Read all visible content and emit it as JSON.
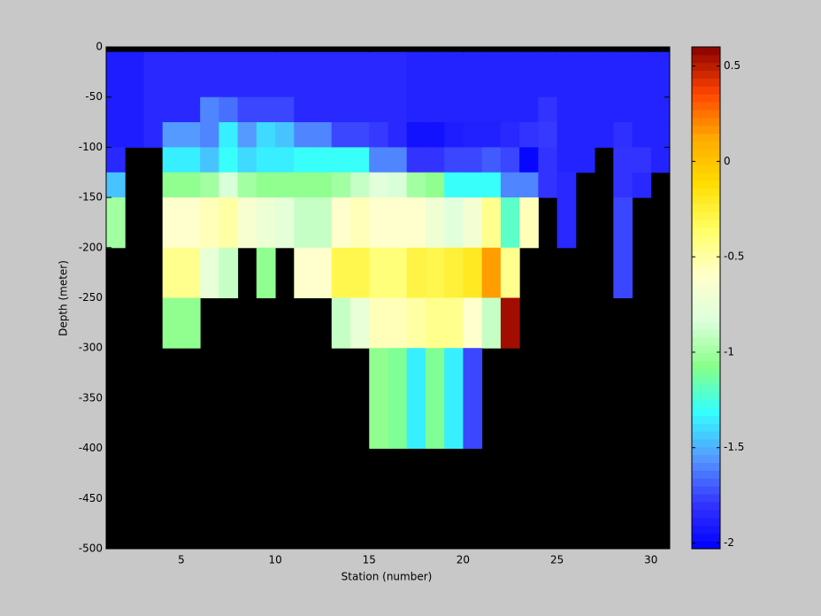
{
  "chart_data": {
    "type": "heatmap",
    "xlabel": "Station (number)",
    "ylabel": "Depth (meter)",
    "x_edges": [
      1,
      2,
      3,
      4,
      5,
      6,
      7,
      8,
      9,
      10,
      11,
      12,
      13,
      14,
      15,
      16,
      17,
      18,
      19,
      20,
      21,
      22,
      23,
      24,
      25,
      26,
      27,
      28,
      29,
      30,
      31
    ],
    "y_edges": [
      0,
      -5,
      -50,
      -75,
      -100,
      -125,
      -150,
      -200,
      -250,
      -300,
      -400,
      -500
    ],
    "xlim": [
      1,
      31
    ],
    "ylim": [
      -500,
      0
    ],
    "xticks": [
      5,
      10,
      15,
      20,
      25,
      30
    ],
    "yticks": [
      0,
      -50,
      -100,
      -150,
      -200,
      -250,
      -300,
      -350,
      -400,
      -450,
      -500
    ],
    "clim": [
      -2.03,
      0.6
    ],
    "cticks": [
      0.5,
      0,
      -0.5,
      -1,
      -1.5,
      -2
    ],
    "colormap": [
      "#0000ff",
      "#3535ff",
      "#5599ff",
      "#33ffff",
      "#88ff88",
      "#ddffdd",
      "#ffffcc",
      "#ffff66",
      "#ffdd00",
      "#ffaa00",
      "#ff4400",
      "#880000"
    ],
    "nan_color": "#000000",
    "z": [
      [
        null,
        null,
        null,
        null,
        null,
        null,
        null,
        null,
        null,
        null,
        null,
        null,
        null,
        null,
        null,
        null,
        null,
        null,
        null,
        null,
        null,
        null,
        null,
        null,
        null,
        null,
        null,
        null,
        null,
        null
      ],
      [
        -1.9,
        -1.9,
        -1.85,
        -1.85,
        -1.85,
        -1.85,
        -1.85,
        -1.85,
        -1.85,
        -1.85,
        -1.85,
        -1.85,
        -1.85,
        -1.85,
        -1.85,
        -1.85,
        -1.87,
        -1.87,
        -1.87,
        -1.87,
        -1.87,
        -1.87,
        -1.87,
        -1.87,
        -1.87,
        -1.87,
        -1.87,
        -1.87,
        -1.87,
        -1.87
      ],
      [
        -1.9,
        -1.9,
        -1.85,
        -1.85,
        -1.85,
        -1.6,
        -1.65,
        -1.75,
        -1.75,
        -1.75,
        -1.85,
        -1.85,
        -1.85,
        -1.85,
        -1.85,
        -1.85,
        -1.87,
        -1.87,
        -1.87,
        -1.87,
        -1.87,
        -1.87,
        -1.87,
        -1.8,
        -1.87,
        -1.87,
        -1.87,
        -1.87,
        -1.87,
        -1.87
      ],
      [
        -1.9,
        -1.9,
        -1.85,
        -1.55,
        -1.55,
        -1.6,
        -1.35,
        -1.55,
        -1.4,
        -1.45,
        -1.6,
        -1.6,
        -1.75,
        -1.75,
        -1.78,
        -1.85,
        -1.95,
        -1.95,
        -1.9,
        -1.88,
        -1.88,
        -1.85,
        -1.8,
        -1.78,
        -1.87,
        -1.87,
        -1.87,
        -1.82,
        -1.87,
        -1.87
      ],
      [
        -1.85,
        null,
        null,
        -1.35,
        -1.35,
        -1.45,
        -1.3,
        -1.4,
        -1.35,
        -1.35,
        -1.3,
        -1.3,
        -1.3,
        -1.3,
        -1.6,
        -1.6,
        -1.8,
        -1.8,
        -1.75,
        -1.75,
        -1.7,
        -1.75,
        -2.0,
        -1.8,
        -1.87,
        -1.87,
        null,
        -1.8,
        -1.8,
        -1.87
      ],
      [
        -1.45,
        null,
        null,
        -1.05,
        -1.05,
        -1.0,
        -0.85,
        -1.0,
        -1.05,
        -1.05,
        -1.05,
        -1.05,
        -1.0,
        -0.9,
        -0.8,
        -0.85,
        -1.0,
        -1.05,
        -1.3,
        -1.3,
        -1.3,
        -1.6,
        -1.6,
        -1.8,
        -1.85,
        null,
        null,
        -1.8,
        -1.85,
        null
      ],
      [
        -1.0,
        null,
        null,
        -0.6,
        -0.6,
        -0.55,
        -0.5,
        -0.65,
        -0.72,
        -0.78,
        -0.9,
        -0.9,
        -0.6,
        -0.55,
        -0.6,
        -0.6,
        -0.6,
        -0.7,
        -0.8,
        -0.68,
        -0.45,
        -1.2,
        -0.55,
        null,
        -1.85,
        null,
        null,
        -1.75,
        null,
        null
      ],
      [
        null,
        null,
        null,
        -0.45,
        -0.45,
        -0.75,
        -0.9,
        null,
        -1.05,
        null,
        -0.6,
        -0.6,
        -0.3,
        -0.3,
        -0.4,
        -0.4,
        -0.28,
        -0.3,
        -0.25,
        -0.2,
        0.15,
        -0.45,
        null,
        null,
        null,
        null,
        null,
        -1.75,
        null,
        null
      ],
      [
        null,
        null,
        null,
        -1.05,
        -1.05,
        null,
        null,
        null,
        null,
        null,
        null,
        null,
        -0.9,
        -0.75,
        -0.55,
        -0.55,
        -0.5,
        -0.45,
        -0.45,
        -0.6,
        -0.9,
        0.55,
        null,
        null,
        null,
        null,
        null,
        null,
        null,
        null
      ],
      [
        null,
        null,
        null,
        null,
        null,
        null,
        null,
        null,
        null,
        null,
        null,
        null,
        null,
        null,
        -1.05,
        -1.1,
        -1.35,
        -1.1,
        -1.35,
        -1.75,
        null,
        null,
        null,
        null,
        null,
        null,
        null,
        null,
        null,
        null
      ],
      [
        null,
        null,
        null,
        null,
        null,
        null,
        null,
        null,
        null,
        null,
        null,
        null,
        null,
        null,
        null,
        null,
        null,
        null,
        null,
        null,
        null,
        null,
        null,
        null,
        null,
        null,
        null,
        null,
        null,
        null
      ]
    ]
  }
}
